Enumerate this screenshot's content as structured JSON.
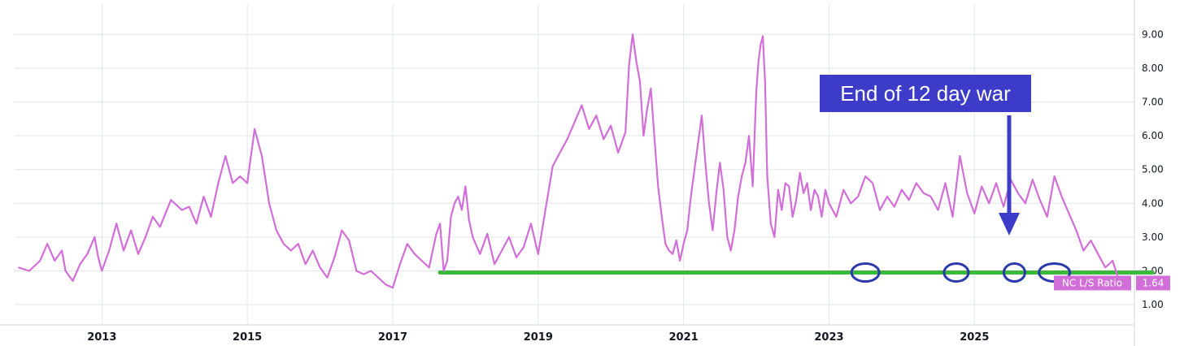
{
  "chart_data": {
    "type": "line",
    "x_axis": {
      "ticks": [
        "2013",
        "2015",
        "2017",
        "2019",
        "2021",
        "2023",
        "2025"
      ],
      "range": [
        2011.8,
        2027.2
      ]
    },
    "y_axis": {
      "ticks": [
        "1.00",
        "2.00",
        "3.00",
        "4.00",
        "5.00",
        "6.00",
        "7.00",
        "8.00",
        "9.00"
      ],
      "range": [
        0.4,
        9.9
      ],
      "position": "right"
    },
    "grid": true,
    "series": [
      {
        "name": "NC L/S Ratio",
        "color": "#d16ed8",
        "last_value": "1.64",
        "points": [
          [
            2011.85,
            2.1
          ],
          [
            2012.0,
            2.0
          ],
          [
            2012.15,
            2.3
          ],
          [
            2012.25,
            2.8
          ],
          [
            2012.35,
            2.3
          ],
          [
            2012.45,
            2.6
          ],
          [
            2012.5,
            2.0
          ],
          [
            2012.6,
            1.7
          ],
          [
            2012.7,
            2.2
          ],
          [
            2012.8,
            2.5
          ],
          [
            2012.9,
            3.0
          ],
          [
            2012.95,
            2.4
          ],
          [
            2013.0,
            2.0
          ],
          [
            2013.1,
            2.6
          ],
          [
            2013.2,
            3.4
          ],
          [
            2013.3,
            2.6
          ],
          [
            2013.4,
            3.2
          ],
          [
            2013.5,
            2.5
          ],
          [
            2013.6,
            3.0
          ],
          [
            2013.7,
            3.6
          ],
          [
            2013.8,
            3.3
          ],
          [
            2013.95,
            4.1
          ],
          [
            2014.1,
            3.8
          ],
          [
            2014.2,
            3.9
          ],
          [
            2014.3,
            3.4
          ],
          [
            2014.4,
            4.2
          ],
          [
            2014.5,
            3.6
          ],
          [
            2014.6,
            4.6
          ],
          [
            2014.7,
            5.4
          ],
          [
            2014.8,
            4.6
          ],
          [
            2014.9,
            4.8
          ],
          [
            2015.0,
            4.6
          ],
          [
            2015.1,
            6.2
          ],
          [
            2015.2,
            5.4
          ],
          [
            2015.3,
            4.0
          ],
          [
            2015.4,
            3.2
          ],
          [
            2015.5,
            2.8
          ],
          [
            2015.6,
            2.6
          ],
          [
            2015.7,
            2.8
          ],
          [
            2015.8,
            2.2
          ],
          [
            2015.9,
            2.6
          ],
          [
            2016.0,
            2.1
          ],
          [
            2016.1,
            1.8
          ],
          [
            2016.2,
            2.4
          ],
          [
            2016.3,
            3.2
          ],
          [
            2016.4,
            2.9
          ],
          [
            2016.5,
            2.0
          ],
          [
            2016.6,
            1.9
          ],
          [
            2016.7,
            2.0
          ],
          [
            2016.8,
            1.8
          ],
          [
            2016.9,
            1.6
          ],
          [
            2017.0,
            1.5
          ],
          [
            2017.1,
            2.2
          ],
          [
            2017.2,
            2.8
          ],
          [
            2017.3,
            2.5
          ],
          [
            2017.4,
            2.3
          ],
          [
            2017.5,
            2.1
          ],
          [
            2017.6,
            3.1
          ],
          [
            2017.65,
            3.4
          ],
          [
            2017.7,
            2.0
          ],
          [
            2017.75,
            2.3
          ],
          [
            2017.8,
            3.6
          ],
          [
            2017.85,
            4.0
          ],
          [
            2017.9,
            4.2
          ],
          [
            2017.95,
            3.8
          ],
          [
            2018.0,
            4.5
          ],
          [
            2018.05,
            3.5
          ],
          [
            2018.1,
            3.0
          ],
          [
            2018.2,
            2.5
          ],
          [
            2018.3,
            3.1
          ],
          [
            2018.4,
            2.2
          ],
          [
            2018.5,
            2.6
          ],
          [
            2018.6,
            3.0
          ],
          [
            2018.7,
            2.4
          ],
          [
            2018.8,
            2.7
          ],
          [
            2018.9,
            3.4
          ],
          [
            2019.0,
            2.5
          ],
          [
            2019.1,
            3.8
          ],
          [
            2019.2,
            5.1
          ],
          [
            2019.3,
            5.5
          ],
          [
            2019.4,
            5.9
          ],
          [
            2019.5,
            6.4
          ],
          [
            2019.6,
            6.9
          ],
          [
            2019.7,
            6.2
          ],
          [
            2019.8,
            6.6
          ],
          [
            2019.9,
            5.9
          ],
          [
            2020.0,
            6.3
          ],
          [
            2020.1,
            5.5
          ],
          [
            2020.2,
            6.1
          ],
          [
            2020.25,
            8.1
          ],
          [
            2020.3,
            9.0
          ],
          [
            2020.35,
            8.2
          ],
          [
            2020.4,
            7.6
          ],
          [
            2020.45,
            6.0
          ],
          [
            2020.5,
            6.8
          ],
          [
            2020.55,
            7.4
          ],
          [
            2020.6,
            5.9
          ],
          [
            2020.65,
            4.5
          ],
          [
            2020.7,
            3.6
          ],
          [
            2020.75,
            2.8
          ],
          [
            2020.8,
            2.6
          ],
          [
            2020.85,
            2.5
          ],
          [
            2020.9,
            2.9
          ],
          [
            2020.95,
            2.3
          ],
          [
            2021.0,
            2.8
          ],
          [
            2021.05,
            3.2
          ],
          [
            2021.1,
            4.2
          ],
          [
            2021.15,
            5.0
          ],
          [
            2021.2,
            5.8
          ],
          [
            2021.25,
            6.6
          ],
          [
            2021.3,
            5.2
          ],
          [
            2021.35,
            4.0
          ],
          [
            2021.4,
            3.2
          ],
          [
            2021.45,
            4.3
          ],
          [
            2021.5,
            5.2
          ],
          [
            2021.55,
            4.4
          ],
          [
            2021.6,
            3.0
          ],
          [
            2021.65,
            2.6
          ],
          [
            2021.7,
            3.2
          ],
          [
            2021.75,
            4.2
          ],
          [
            2021.8,
            4.8
          ],
          [
            2021.85,
            5.2
          ],
          [
            2021.9,
            6.0
          ],
          [
            2021.95,
            4.5
          ],
          [
            2022.0,
            7.3
          ],
          [
            2022.03,
            8.2
          ],
          [
            2022.06,
            8.7
          ],
          [
            2022.09,
            8.95
          ],
          [
            2022.12,
            7.6
          ],
          [
            2022.15,
            4.8
          ],
          [
            2022.2,
            3.4
          ],
          [
            2022.25,
            3.0
          ],
          [
            2022.3,
            4.4
          ],
          [
            2022.35,
            3.8
          ],
          [
            2022.4,
            4.6
          ],
          [
            2022.45,
            4.5
          ],
          [
            2022.5,
            3.6
          ],
          [
            2022.55,
            4.1
          ],
          [
            2022.6,
            4.9
          ],
          [
            2022.65,
            4.3
          ],
          [
            2022.7,
            4.6
          ],
          [
            2022.75,
            3.8
          ],
          [
            2022.8,
            4.4
          ],
          [
            2022.85,
            4.2
          ],
          [
            2022.9,
            3.6
          ],
          [
            2022.95,
            4.4
          ],
          [
            2023.0,
            4.0
          ],
          [
            2023.1,
            3.6
          ],
          [
            2023.2,
            4.4
          ],
          [
            2023.3,
            4.0
          ],
          [
            2023.4,
            4.2
          ],
          [
            2023.5,
            4.8
          ],
          [
            2023.6,
            4.6
          ],
          [
            2023.7,
            3.8
          ],
          [
            2023.8,
            4.2
          ],
          [
            2023.9,
            3.9
          ],
          [
            2024.0,
            4.4
          ],
          [
            2024.1,
            4.1
          ],
          [
            2024.2,
            4.6
          ],
          [
            2024.3,
            4.3
          ],
          [
            2024.4,
            4.2
          ],
          [
            2024.5,
            3.8
          ],
          [
            2024.6,
            4.6
          ],
          [
            2024.7,
            3.6
          ],
          [
            2024.8,
            5.4
          ],
          [
            2024.9,
            4.3
          ],
          [
            2025.0,
            3.7
          ],
          [
            2025.1,
            4.5
          ],
          [
            2025.2,
            4.0
          ],
          [
            2025.3,
            4.6
          ],
          [
            2025.4,
            3.9
          ],
          [
            2025.5,
            4.7
          ],
          [
            2025.6,
            4.3
          ],
          [
            2025.7,
            4.0
          ],
          [
            2025.8,
            4.7
          ],
          [
            2025.9,
            4.1
          ],
          [
            2026.0,
            3.6
          ],
          [
            2026.1,
            4.8
          ],
          [
            2026.2,
            4.2
          ],
          [
            2026.3,
            3.7
          ],
          [
            2026.4,
            3.2
          ],
          [
            2026.5,
            2.6
          ],
          [
            2026.6,
            2.9
          ],
          [
            2026.7,
            2.5
          ],
          [
            2026.8,
            2.1
          ],
          [
            2026.9,
            2.3
          ],
          [
            2027.0,
            1.64
          ]
        ]
      }
    ],
    "annotations": {
      "callout_text": "End of 12 day war",
      "support_level": 1.95,
      "highlight_circles": [
        2023.5,
        2024.75,
        2025.55,
        2026.1
      ]
    },
    "colors": {
      "line": "#d16ed8",
      "support": "#3cb93c",
      "callout": "#3c3cc8",
      "circle": "#2a3aa8",
      "grid": "#e3e6eb"
    }
  }
}
